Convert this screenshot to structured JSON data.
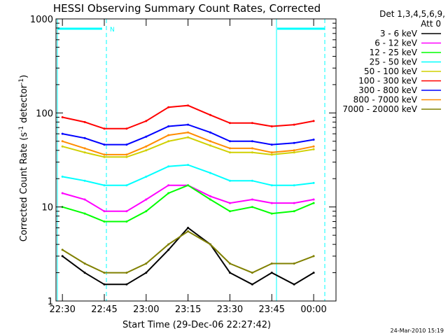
{
  "chart_data": {
    "type": "line",
    "title": "HESSI Observing Summary Count Rates, Corrected",
    "xlabel": "Start Time (29-Dec-06 22:27:42)",
    "ylabel": "Corrected Count Rate (s",
    "ylabel_sup1": "-1",
    "ylabel_mid": " detector",
    "ylabel_sup2": "-1",
    "ylabel_end": ")",
    "yscale": "log",
    "ylim": [
      1,
      1000
    ],
    "xlim": [
      "22:27:42",
      "00:08:00"
    ],
    "y_ticks": [
      1,
      10,
      100,
      1000
    ],
    "y_tick_labels": [
      "1",
      "10",
      "100",
      "1000"
    ],
    "x_ticks": [
      "22:30",
      "22:45",
      "23:00",
      "23:15",
      "23:30",
      "23:45",
      "00:00"
    ],
    "x_tick_labels": [
      "22:30",
      "22:45",
      "23:00",
      "23:15",
      "23:30",
      "23:45",
      "00:00"
    ],
    "legend_header": [
      "Det 1,3,4,5,6,9,",
      "Att 0"
    ],
    "legend_placement": "right",
    "series": [
      {
        "name": "3 - 6 keV",
        "color": "#000000",
        "values": [
          3,
          2,
          1.5,
          1.5,
          2,
          3.5,
          6,
          4,
          2,
          1.5,
          2,
          1.5,
          2
        ]
      },
      {
        "name": "6 - 12 keV",
        "color": "#ff00ff",
        "values": [
          14,
          12,
          9,
          9,
          12,
          17,
          17,
          13,
          11,
          12,
          11,
          11,
          12
        ]
      },
      {
        "name": "12 - 25 keV",
        "color": "#00ff00",
        "values": [
          10,
          8.5,
          7,
          7,
          9,
          14,
          17,
          12,
          9,
          10,
          8.5,
          9,
          11
        ]
      },
      {
        "name": "25 - 50 keV",
        "color": "#00ffff",
        "values": [
          21,
          19,
          17,
          17,
          21,
          27,
          28,
          23,
          19,
          19,
          17,
          17,
          18
        ]
      },
      {
        "name": "50 - 100 keV",
        "color": "#d0d000",
        "values": [
          44,
          38,
          34,
          34,
          40,
          50,
          55,
          45,
          38,
          38,
          36,
          38,
          41
        ]
      },
      {
        "name": "100 - 300 keV",
        "color": "#ff0000",
        "values": [
          90,
          80,
          68,
          68,
          82,
          115,
          120,
          95,
          78,
          78,
          72,
          75,
          82
        ]
      },
      {
        "name": "300 - 800 keV",
        "color": "#0000ff",
        "values": [
          60,
          54,
          46,
          46,
          56,
          72,
          75,
          62,
          50,
          50,
          46,
          48,
          52
        ]
      },
      {
        "name": "800 - 7000 keV",
        "color": "#ff8c00",
        "values": [
          50,
          42,
          36,
          36,
          44,
          58,
          62,
          50,
          42,
          42,
          38,
          40,
          44
        ]
      },
      {
        "name": "7000 - 20000 keV",
        "color": "#808000",
        "values": [
          3.5,
          2.5,
          2,
          2,
          2.5,
          4,
          5.5,
          4,
          2.5,
          2,
          2.5,
          2.5,
          3
        ]
      }
    ],
    "x": [
      "22:30",
      "22:38",
      "22:45",
      "22:53",
      "23:00",
      "23:08",
      "23:15",
      "23:23",
      "23:30",
      "23:38",
      "23:45",
      "23:53",
      "00:00"
    ],
    "overlay_flag_label": "N",
    "overlay_color": "#00ffff"
  },
  "footer": {
    "date": "24-Mar-2010 15:19"
  }
}
